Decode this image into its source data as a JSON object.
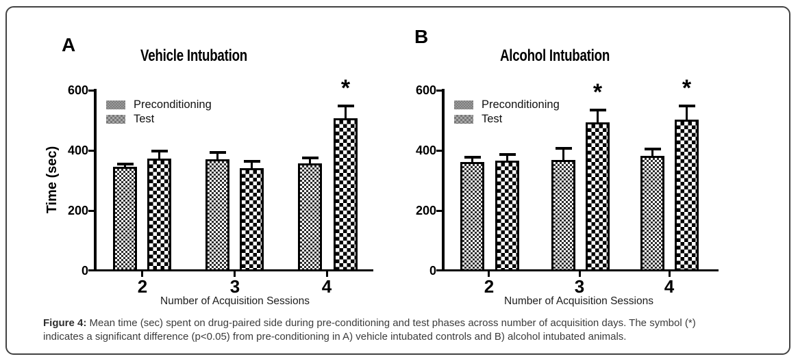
{
  "figure": {
    "caption": {
      "label": "Figure 4:",
      "text": "Mean time (sec) spent on drug-paired side during pre-conditioning and test phases across number of acquisition days. The symbol (*) indicates a significant difference (p<0.05) from pre-conditioning in A) vehicle intubated controls and B) alcohol intubated animals."
    }
  },
  "chart_data": [
    {
      "type": "bar",
      "panel": "A",
      "title": "Vehicle Intubation",
      "xlabel": "Number of Acquisition Sessions",
      "ylabel": "Time (sec)",
      "ylim": [
        0,
        600
      ],
      "yticks": [
        600,
        400,
        200,
        0
      ],
      "ytick_labels": [
        "600",
        "400",
        "200",
        "0"
      ],
      "categories": [
        "2",
        "3",
        "4"
      ],
      "legend": [
        "Preconditioning",
        "Test"
      ],
      "legend_position": "upper-left",
      "grid": false,
      "sig_marker": "*",
      "series": [
        {
          "name": "Preconditioning",
          "values": [
            348,
            372,
            358
          ],
          "errors": [
            14,
            29,
            23
          ],
          "significant": [
            false,
            false,
            false
          ]
        },
        {
          "name": "Test",
          "values": [
            375,
            343,
            508
          ],
          "errors": [
            29,
            27,
            47
          ],
          "significant": [
            false,
            false,
            true
          ]
        }
      ]
    },
    {
      "type": "bar",
      "panel": "B",
      "title": "Alcohol Intubation",
      "xlabel": "Number of Acquisition Sessions",
      "ylabel": "",
      "ylim": [
        0,
        600
      ],
      "yticks": [
        600,
        400,
        200,
        0
      ],
      "ytick_labels": [
        "600",
        "400",
        "200",
        "0"
      ],
      "categories": [
        "2",
        "3",
        "4"
      ],
      "legend": [
        "Preconditioning",
        "Test"
      ],
      "legend_position": "upper-left",
      "grid": false,
      "sig_marker": "*",
      "series": [
        {
          "name": "Preconditioning",
          "values": [
            363,
            370,
            385
          ],
          "errors": [
            22,
            43,
            27
          ],
          "significant": [
            false,
            false,
            false
          ]
        },
        {
          "name": "Test",
          "values": [
            368,
            495,
            505
          ],
          "errors": [
            25,
            45,
            50
          ],
          "significant": [
            false,
            true,
            true
          ]
        }
      ]
    }
  ]
}
